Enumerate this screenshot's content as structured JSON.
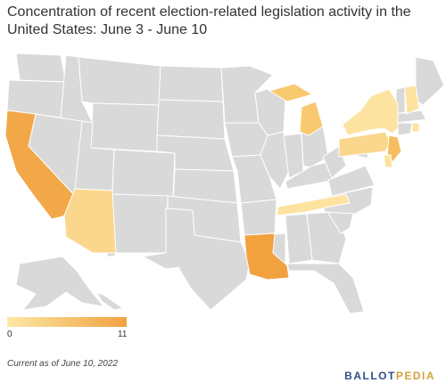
{
  "title": "Concentration of recent election-related legislation activity in the United States: June 3 - June 10",
  "legend": {
    "min": "0",
    "max": "11",
    "min_color": "#fce8a6",
    "max_color": "#f1a23f"
  },
  "footnote": "Current as of June 10, 2022",
  "logo": {
    "part1": "BALLOT",
    "part2": "PEDIA"
  },
  "colors": {
    "base_state": "#d9d9d9",
    "border": "#ffffff"
  },
  "highlighted_states": [
    {
      "state": "Louisiana",
      "color": "#f1a23f"
    },
    {
      "state": "California",
      "color": "#f2a848"
    },
    {
      "state": "Arizona",
      "color": "#fbd68d"
    },
    {
      "state": "Michigan",
      "color": "#f8c96f"
    },
    {
      "state": "Tennessee",
      "color": "#fde3a0"
    },
    {
      "state": "New York",
      "color": "#fde3a0"
    },
    {
      "state": "Pennsylvania",
      "color": "#fbd68d"
    },
    {
      "state": "New Jersey",
      "color": "#f6bd60"
    },
    {
      "state": "New Hampshire",
      "color": "#fde3a0"
    },
    {
      "state": "Rhode Island",
      "color": "#fde3a0"
    },
    {
      "state": "Delaware",
      "color": "#fde3a0"
    }
  ]
}
